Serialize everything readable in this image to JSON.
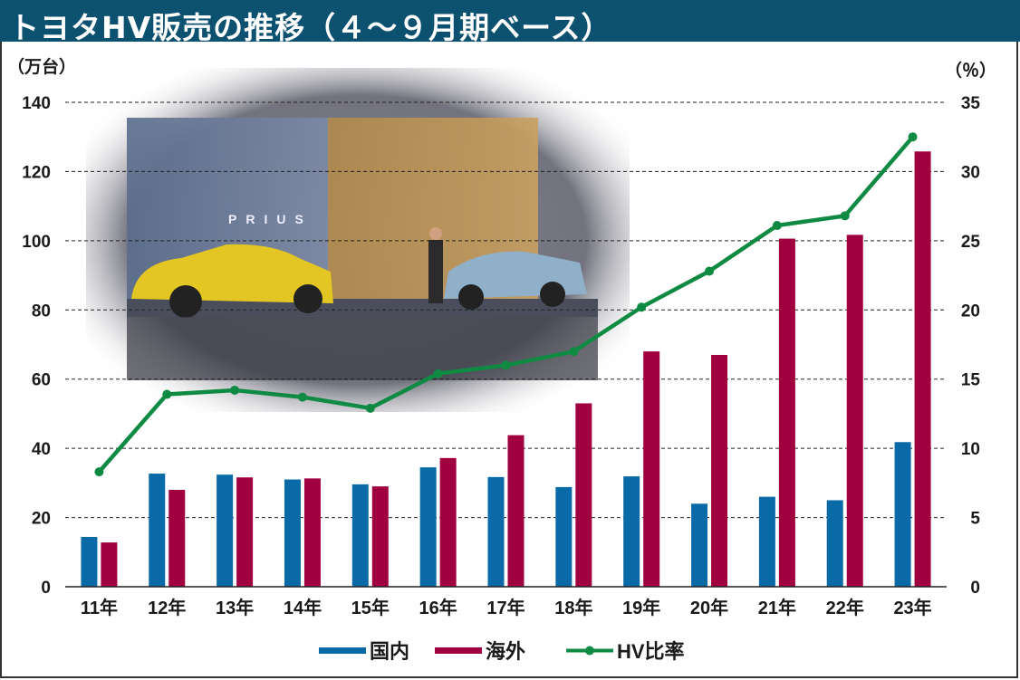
{
  "title": "トヨタHV販売の推移（４～９月期ベース）",
  "chart_data": {
    "type": "bar",
    "title": "トヨタHV販売の推移（４～９月期ベース）",
    "categories": [
      "11年",
      "12年",
      "13年",
      "14年",
      "15年",
      "16年",
      "17年",
      "18年",
      "19年",
      "20年",
      "21年",
      "22年",
      "23年"
    ],
    "series": [
      {
        "name": "国内",
        "type": "bar",
        "axis": "left",
        "color": "#0a6aa8",
        "values": [
          14.4,
          32.7,
          32.4,
          31.0,
          29.6,
          34.5,
          31.7,
          28.8,
          31.9,
          24.0,
          26.0,
          25.0,
          41.8
        ]
      },
      {
        "name": "海外",
        "type": "bar",
        "axis": "left",
        "color": "#a0003f",
        "values": [
          12.8,
          28.0,
          31.6,
          31.3,
          29.0,
          37.2,
          43.8,
          53.0,
          68.0,
          67.0,
          100.6,
          101.7,
          125.8
        ]
      },
      {
        "name": "HV比率",
        "type": "line",
        "axis": "right",
        "color": "#0e8a42",
        "values": [
          8.3,
          13.9,
          14.2,
          13.7,
          12.9,
          15.4,
          16.0,
          17.0,
          20.2,
          22.8,
          26.1,
          26.8,
          32.5
        ]
      }
    ],
    "ylabel_left": "（万台）",
    "ylabel_right": "（％）",
    "ylim_left": [
      0,
      140
    ],
    "ylim_right": [
      0,
      35
    ],
    "yticks_left": [
      "0",
      "20",
      "40",
      "60",
      "80",
      "100",
      "120",
      "140"
    ],
    "yticks_right": [
      "0",
      "5",
      "10",
      "15",
      "20",
      "25",
      "30",
      "35"
    ],
    "grid": true,
    "legend_position": "bottom"
  }
}
